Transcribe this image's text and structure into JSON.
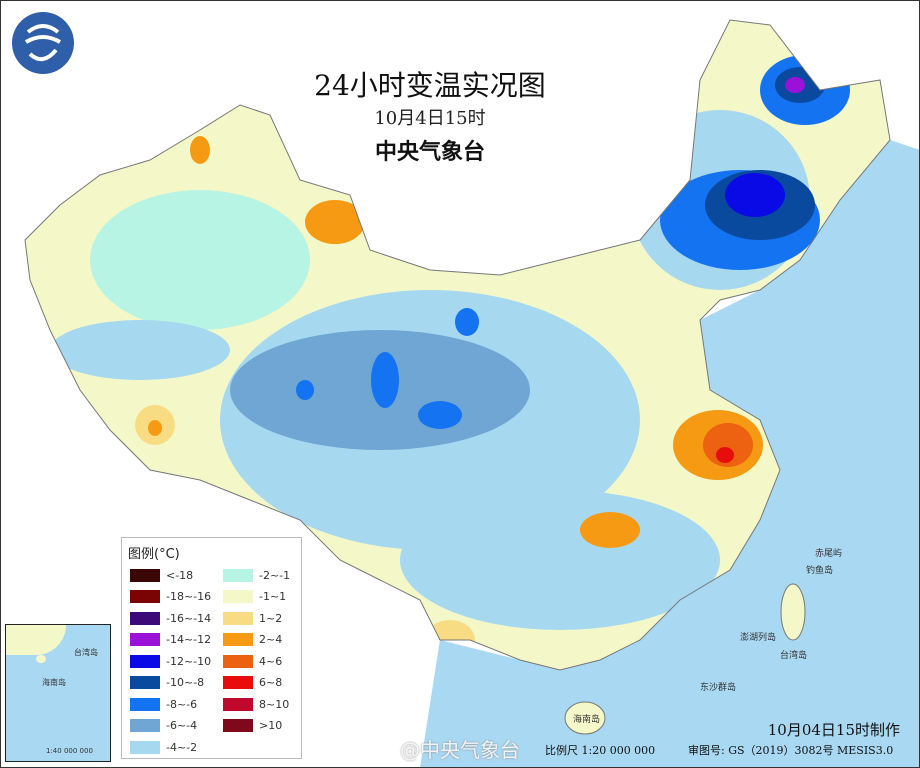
{
  "header": {
    "title": "24小时变温实况图",
    "time": "10月4日15时",
    "issuer": "中央气象台"
  },
  "legend": {
    "title": "图例(°C)",
    "items": [
      {
        "label": "<-18",
        "color": "#3a0606"
      },
      {
        "label": "-18~-16",
        "color": "#7a0404"
      },
      {
        "label": "-16~-14",
        "color": "#3c0a78"
      },
      {
        "label": "-14~-12",
        "color": "#9a12d8"
      },
      {
        "label": "-12~-10",
        "color": "#0a0ae6"
      },
      {
        "label": "-10~-8",
        "color": "#0a4a9e"
      },
      {
        "label": "-8~-6",
        "color": "#1473f0"
      },
      {
        "label": "-6~-4",
        "color": "#6fa6d4"
      },
      {
        "label": "-4~-2",
        "color": "#a6d8f0"
      },
      {
        "label": "-2~-1",
        "color": "#b8f4e4"
      },
      {
        "label": "-1~1",
        "color": "#f4f8c8"
      },
      {
        "label": "1~2",
        "color": "#f8dc84"
      },
      {
        "label": "2~4",
        "color": "#f69a14"
      },
      {
        "label": "4~6",
        "color": "#ec6210"
      },
      {
        "label": "6~8",
        "color": "#e80c0c"
      },
      {
        "label": "8~10",
        "color": "#c0082c"
      },
      {
        "label": ">10",
        "color": "#80081c"
      }
    ]
  },
  "footer": {
    "made": "10月04日15时制作",
    "scale": "比例尺 1:20 000 000",
    "review": "审图号: GS（2019）3082号 MESIS3.0",
    "watermark": "@中央气象台"
  },
  "places": {
    "taiwan": "台湾岛",
    "penghu": "澎湖列岛",
    "diaoyu": "钓鱼岛",
    "chiwei": "赤尾屿",
    "hainan": "海南岛",
    "dongsha": "东沙群岛"
  },
  "inset": {
    "taiwan": "台湾岛",
    "hainan": "海南岛",
    "scale": "1:40 000 000"
  }
}
